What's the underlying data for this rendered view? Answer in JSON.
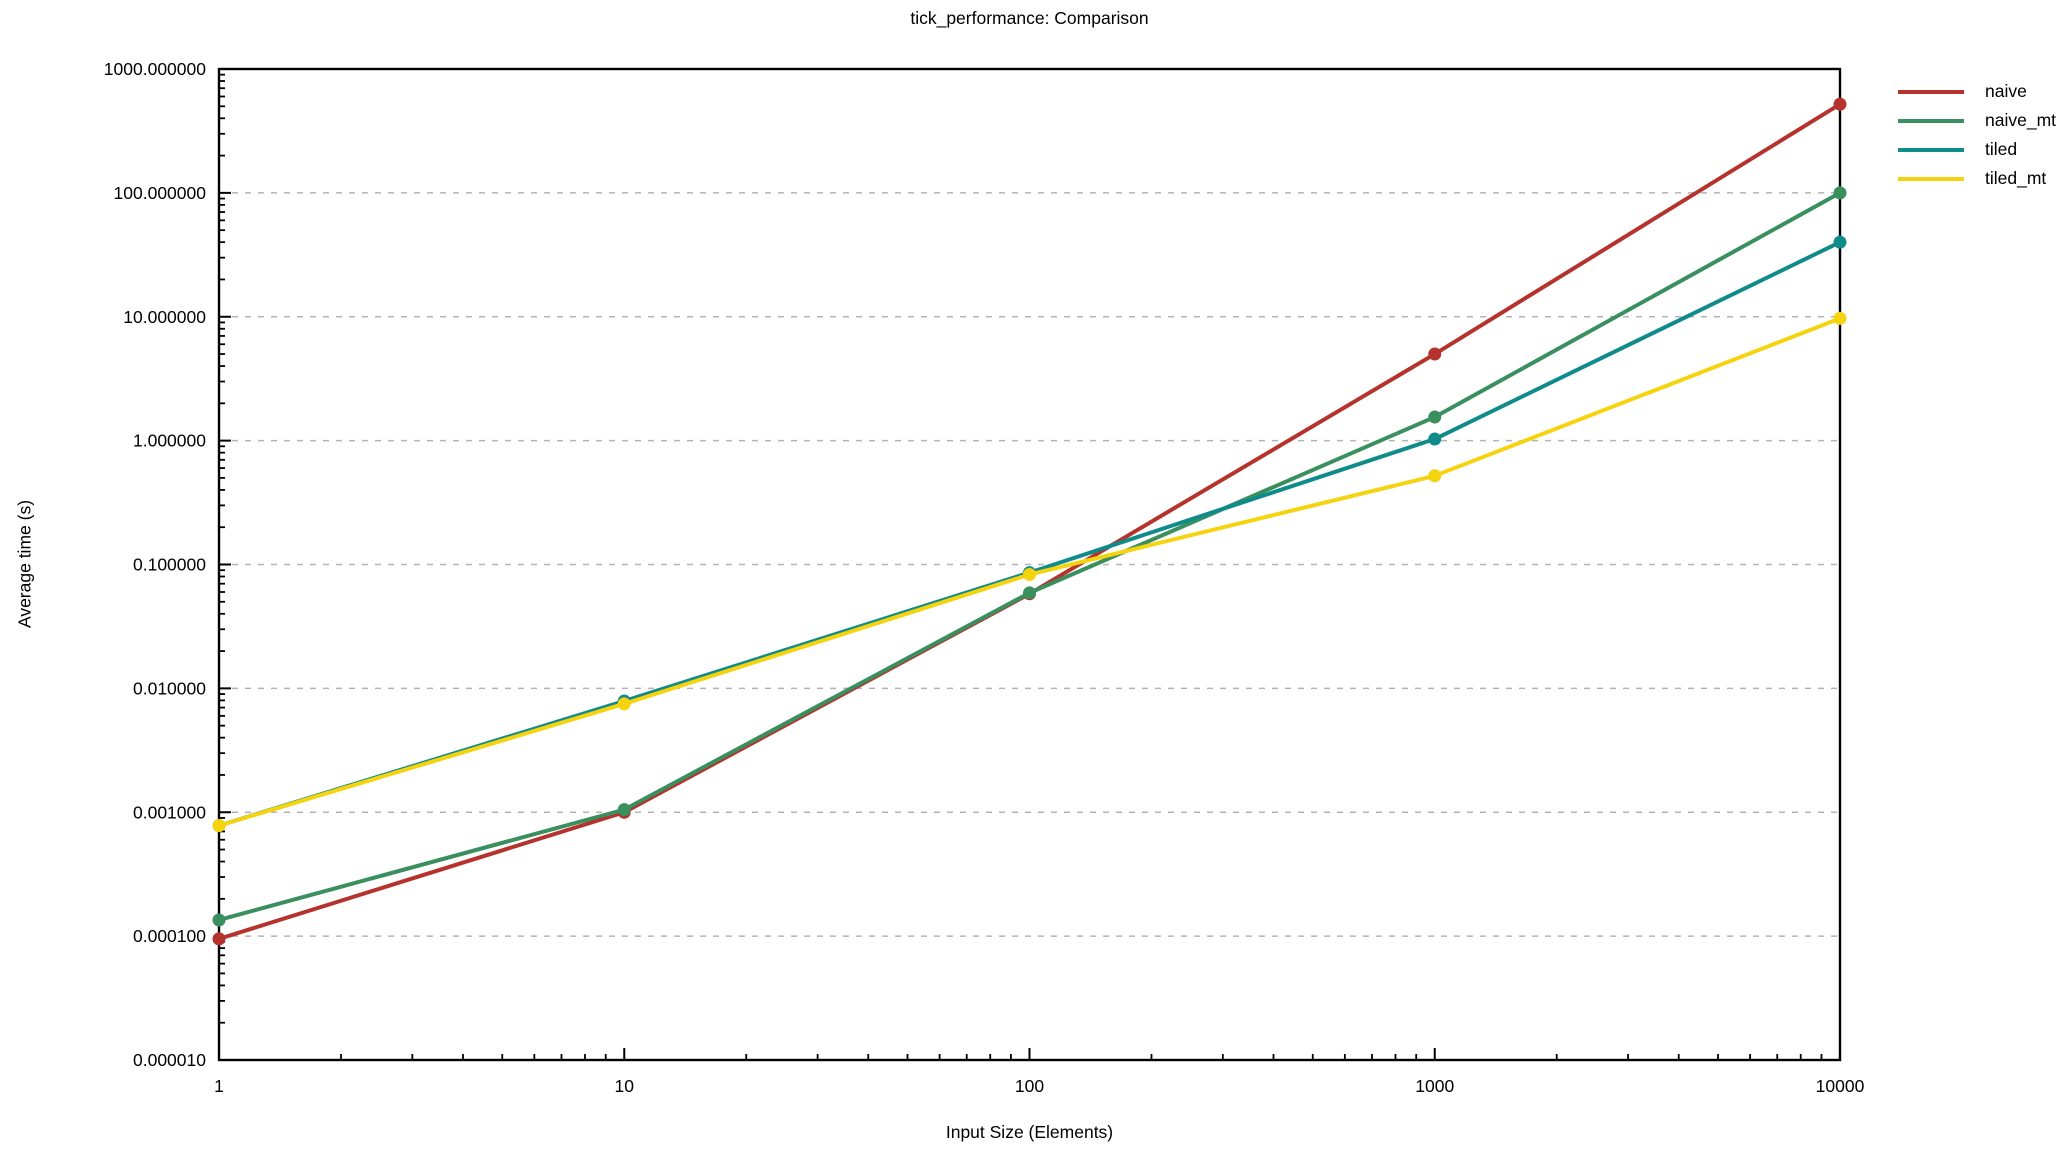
{
  "chart_data": {
    "type": "line",
    "title": "tick_performance: Comparison",
    "xlabel": "Input Size (Elements)",
    "ylabel": "Average time (s)",
    "x_scale": "log",
    "y_scale": "log",
    "xlim": [
      1,
      10000
    ],
    "ylim": [
      1e-05,
      1000
    ],
    "x": [
      1,
      10,
      100,
      1000,
      10000
    ],
    "x_tick_labels": [
      "1",
      "10",
      "100",
      "1000",
      "10000"
    ],
    "y_tick_labels": [
      "1000.000000",
      "100.000000",
      "10.000000",
      "1.000000",
      "0.100000",
      "0.010000",
      "0.001000",
      "0.000100",
      "0.000010"
    ],
    "grid": "horizontal dashed gridlines at each y decade",
    "grid_color": "#b3b3b3",
    "axis_color": "#000000",
    "legend_position": "outside top-right",
    "series": [
      {
        "name": "naive",
        "color": "#b5322d",
        "marker": "filled-circle",
        "values": [
          9.5e-05,
          0.001,
          0.058,
          5.0,
          520
        ]
      },
      {
        "name": "naive_mt",
        "color": "#3a8f5f",
        "marker": "filled-circle",
        "values": [
          0.000135,
          0.00105,
          0.059,
          1.55,
          100
        ]
      },
      {
        "name": "tiled",
        "color": "#0f8b8b",
        "marker": "filled-circle",
        "values": [
          0.00078,
          0.0079,
          0.086,
          1.03,
          40
        ]
      },
      {
        "name": "tiled_mt",
        "color": "#f5d30f",
        "marker": "filled-circle",
        "values": [
          0.00078,
          0.0075,
          0.083,
          0.52,
          9.7
        ]
      }
    ]
  }
}
